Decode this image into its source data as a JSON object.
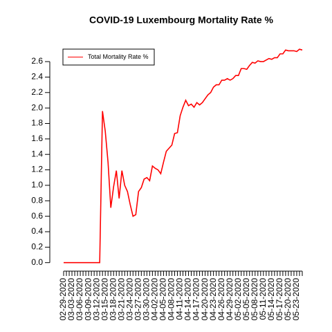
{
  "chart_data": {
    "type": "line",
    "title": "COVID-19 Luxembourg Mortality Rate %",
    "categories": [
      "02-29-2020",
      null,
      null,
      "03-03-2020",
      null,
      null,
      "03-06-2020",
      null,
      null,
      "03-09-2020",
      null,
      null,
      "03-12-2020",
      null,
      null,
      "03-15-2020",
      null,
      null,
      "03-18-2020",
      null,
      null,
      "03-21-2020",
      null,
      null,
      "03-24-2020",
      null,
      null,
      "03-27-2020",
      null,
      null,
      "03-30-2020",
      null,
      null,
      "04-02-2020",
      null,
      null,
      "04-05-2020",
      null,
      null,
      "04-08-2020",
      null,
      null,
      "04-11-2020",
      null,
      null,
      "04-14-2020",
      null,
      null,
      "04-17-2020",
      null,
      null,
      "04-20-2020",
      null,
      null,
      "04-23-2020",
      null,
      null,
      "04-26-2020",
      null,
      null,
      "04-29-2020",
      null,
      null,
      "05-02-2020",
      null,
      null,
      "05-05-2020",
      null,
      null,
      "05-08-2020",
      null,
      null,
      "05-11-2020",
      null,
      null,
      "05-14-2020",
      null,
      null,
      "05-17-2020",
      null,
      null,
      "05-20-2020",
      null,
      null,
      "05-23-2020",
      null,
      null
    ],
    "series": [
      {
        "name": "Total Mortality Rate %",
        "color": "#ff0000",
        "values": [
          0,
          0,
          0,
          0,
          0,
          0,
          0,
          0,
          0,
          0,
          0,
          0,
          0,
          0,
          1.96,
          1.7,
          1.3,
          0.71,
          0.98,
          1.19,
          0.83,
          1.19,
          1.0,
          0.92,
          0.75,
          0.6,
          0.62,
          0.92,
          0.97,
          1.08,
          1.1,
          1.06,
          1.25,
          1.22,
          1.2,
          1.15,
          1.3,
          1.44,
          1.48,
          1.52,
          1.67,
          1.68,
          1.9,
          2.01,
          2.1,
          2.03,
          2.05,
          2.01,
          2.07,
          2.04,
          2.07,
          2.12,
          2.17,
          2.2,
          2.27,
          2.3,
          2.3,
          2.36,
          2.36,
          2.38,
          2.36,
          2.38,
          2.42,
          2.42,
          2.51,
          2.51,
          2.5,
          2.55,
          2.59,
          2.58,
          2.61,
          2.6,
          2.6,
          2.62,
          2.64,
          2.63,
          2.65,
          2.65,
          2.7,
          2.7,
          2.75,
          2.74,
          2.74,
          2.74,
          2.73,
          2.76,
          2.75
        ]
      }
    ],
    "ylim": [
      -0.11,
      2.86
    ],
    "yticks": [
      {
        "value": 0,
        "label": "0.0"
      },
      0.2,
      0.4,
      0.6,
      0.8,
      {
        "value": 1,
        "label": "1.0"
      },
      1.2,
      1.4,
      1.6,
      1.8,
      {
        "value": 2,
        "label": "2.0"
      },
      2.2,
      2.4,
      2.6
    ],
    "legend": "top-left"
  }
}
